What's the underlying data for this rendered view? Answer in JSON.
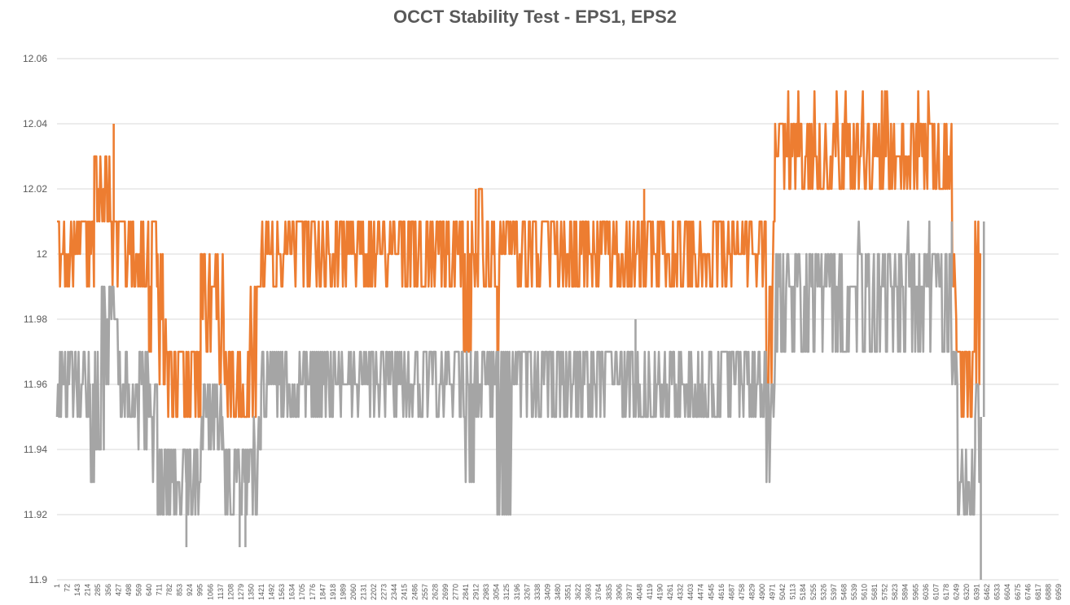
{
  "chart_data": {
    "type": "line",
    "title": "OCCT Stability Test - EPS1, EPS2",
    "xlabel": "",
    "ylabel": "",
    "ylim": [
      11.9,
      12.06
    ],
    "yticks": [
      "11.9",
      "11.92",
      "11.94",
      "11.96",
      "11.98",
      "12",
      "12.02",
      "12.04",
      "12.06"
    ],
    "xlim": [
      1,
      6959
    ],
    "xticks": [
      "1",
      "72",
      "143",
      "214",
      "285",
      "356",
      "427",
      "498",
      "569",
      "640",
      "711",
      "782",
      "853",
      "924",
      "995",
      "1066",
      "1137",
      "1208",
      "1279",
      "1350",
      "1421",
      "1492",
      "1563",
      "1634",
      "1705",
      "1776",
      "1847",
      "1918",
      "1989",
      "2060",
      "2131",
      "2202",
      "2273",
      "2344",
      "2415",
      "2486",
      "2557",
      "2628",
      "2699",
      "2770",
      "2841",
      "2912",
      "2983",
      "3054",
      "3125",
      "3196",
      "3267",
      "3338",
      "3409",
      "3480",
      "3551",
      "3622",
      "3693",
      "3764",
      "3835",
      "3906",
      "3977",
      "4048",
      "4119",
      "4190",
      "4261",
      "4332",
      "4403",
      "4474",
      "4545",
      "4616",
      "4687",
      "4758",
      "4829",
      "4900",
      "4971",
      "5042",
      "5113",
      "5184",
      "5255",
      "5326",
      "5397",
      "5468",
      "5539",
      "5610",
      "5681",
      "5752",
      "5823",
      "5894",
      "5965",
      "6036",
      "6107",
      "6178",
      "6249",
      "6320",
      "6391",
      "6462",
      "6533",
      "6604",
      "6675",
      "6746",
      "6817",
      "6888",
      "6959"
    ],
    "grid": true,
    "legend": "none",
    "series": [
      {
        "color": "#ED7D31",
        "segments": [
          [
            1,
            12.0,
            11.99,
            12.01,
            12.01
          ],
          [
            140,
            12.0,
            11.99,
            12.01,
            12.01
          ],
          [
            230,
            12.0,
            11.99,
            12.01,
            12.01
          ],
          [
            260,
            12.02,
            12.01,
            12.03,
            12.03
          ],
          [
            380,
            12.01,
            11.99,
            12.01,
            12.01
          ],
          [
            430,
            12.0,
            11.99,
            12.01,
            12.01
          ],
          [
            530,
            12.0,
            11.99,
            12.01,
            12.01
          ],
          [
            640,
            11.99,
            11.97,
            12.01,
            12.01
          ],
          [
            700,
            11.98,
            11.96,
            12.0,
            12.0
          ],
          [
            760,
            11.97,
            11.95,
            11.97,
            11.97
          ],
          [
            1000,
            11.98,
            11.96,
            12.0,
            12.0
          ],
          [
            1040,
            11.99,
            11.97,
            12.0,
            12.0
          ],
          [
            1110,
            11.98,
            11.96,
            12.0,
            12.0
          ],
          [
            1160,
            11.96,
            11.95,
            11.97,
            11.97
          ],
          [
            1340,
            11.97,
            11.95,
            11.99,
            11.99
          ],
          [
            1420,
            12.0,
            11.99,
            12.01,
            12.01
          ],
          [
            2820,
            12.0,
            11.97,
            12.01,
            12.01
          ],
          [
            2890,
            12.0,
            11.99,
            12.02,
            12.02
          ],
          [
            2960,
            12.0,
            11.99,
            12.01,
            12.01
          ],
          [
            3060,
            12.0,
            11.97,
            12.01,
            12.01
          ],
          [
            3160,
            12.0,
            11.99,
            12.01,
            12.01
          ],
          [
            4930,
            11.99,
            11.96,
            12.01,
            12.01
          ],
          [
            4990,
            12.03,
            12.02,
            12.04,
            12.05
          ],
          [
            6220,
            11.99,
            11.98,
            12.0,
            12.0
          ],
          [
            6250,
            11.97,
            11.95,
            11.97,
            11.97
          ],
          [
            6380,
            12.0,
            11.96,
            12.01,
            12.01
          ],
          [
            6420,
            12.0,
            12.0,
            12.0,
            12.0
          ]
        ]
      },
      {
        "color": "#A5A5A5",
        "segments": [
          [
            1,
            11.96,
            11.95,
            11.97,
            11.97
          ],
          [
            130,
            11.96,
            11.95,
            11.97,
            11.97
          ],
          [
            230,
            11.96,
            11.93,
            11.97,
            11.98
          ],
          [
            270,
            11.97,
            11.94,
            11.99,
            11.99
          ],
          [
            330,
            11.98,
            11.96,
            11.99,
            11.99
          ],
          [
            430,
            11.96,
            11.95,
            11.97,
            11.97
          ],
          [
            560,
            11.96,
            11.94,
            11.97,
            11.97
          ],
          [
            640,
            11.95,
            11.93,
            11.96,
            11.96
          ],
          [
            700,
            11.93,
            11.92,
            11.94,
            11.94
          ],
          [
            780,
            11.93,
            11.92,
            11.94,
            11.94
          ],
          [
            1000,
            11.95,
            11.94,
            11.96,
            11.96
          ],
          [
            1150,
            11.94,
            11.92,
            11.95,
            11.95
          ],
          [
            1200,
            11.93,
            11.92,
            11.94,
            11.94
          ],
          [
            1340,
            11.94,
            11.92,
            11.95,
            11.95
          ],
          [
            1420,
            11.96,
            11.95,
            11.97,
            11.97
          ],
          [
            2840,
            11.96,
            11.93,
            11.97,
            11.98
          ],
          [
            2900,
            11.96,
            11.95,
            11.97,
            11.97
          ],
          [
            3060,
            11.95,
            11.92,
            11.97,
            11.97
          ],
          [
            3160,
            11.96,
            11.95,
            11.97,
            11.97
          ],
          [
            4930,
            11.95,
            11.93,
            11.96,
            11.96
          ],
          [
            4990,
            11.99,
            11.97,
            12.0,
            12.01
          ],
          [
            6220,
            11.96,
            11.95,
            11.97,
            11.97
          ],
          [
            6260,
            11.93,
            11.92,
            11.94,
            11.94
          ],
          [
            6380,
            11.95,
            11.93,
            11.96,
            11.96
          ],
          [
            6420,
            11.95,
            11.95,
            11.95,
            11.95
          ]
        ]
      }
    ],
    "markers": [
      {
        "series": 1,
        "x": 900,
        "y": 11.91
      },
      {
        "series": 1,
        "x": 1270,
        "y": 11.91
      },
      {
        "series": 1,
        "x": 1310,
        "y": 11.91
      },
      {
        "series": 1,
        "x": 6419,
        "y": 11.9
      },
      {
        "series": 1,
        "x": 6440,
        "y": 12.01
      },
      {
        "series": 0,
        "x": 395,
        "y": 12.04
      },
      {
        "series": 0,
        "x": 4080,
        "y": 12.02
      },
      {
        "series": 0,
        "x": 2910,
        "y": 12.02
      },
      {
        "series": 1,
        "x": 4020,
        "y": 11.98
      },
      {
        "series": 1,
        "x": 6217,
        "y": 12.01
      }
    ]
  }
}
